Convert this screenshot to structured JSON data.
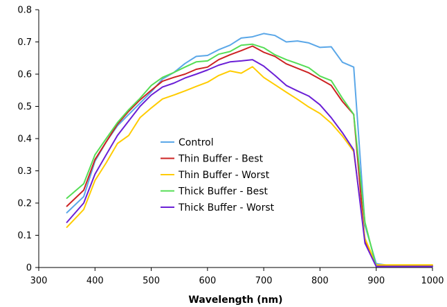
{
  "chart_data": {
    "type": "line",
    "title": "",
    "xlabel": "Wavelength (nm)",
    "ylabel": "",
    "xlim": [
      300,
      1000
    ],
    "ylim": [
      0,
      0.8
    ],
    "x_ticks": [
      300,
      400,
      500,
      600,
      700,
      800,
      900,
      1000
    ],
    "y_ticks": [
      0,
      0.1,
      0.2,
      0.3,
      0.4,
      0.5,
      0.6,
      0.7,
      0.8
    ],
    "x_tick_labels": [
      "300",
      "400",
      "500",
      "600",
      "700",
      "800",
      "900",
      "1000"
    ],
    "y_tick_labels": [
      "0",
      "0.1",
      "0.2",
      "0.3",
      "0.4",
      "0.5",
      "0.6",
      "0.7",
      "0.8"
    ],
    "grid": false,
    "legend_position": "center",
    "x": [
      350,
      380,
      400,
      420,
      440,
      460,
      480,
      500,
      520,
      540,
      560,
      580,
      600,
      620,
      640,
      660,
      680,
      700,
      720,
      740,
      760,
      780,
      800,
      820,
      840,
      860,
      880,
      900,
      920,
      940,
      960,
      980,
      1000
    ],
    "series": [
      {
        "name": "Control",
        "color": "#5aa7e8",
        "values": [
          0.17,
          0.22,
          0.33,
          0.39,
          0.44,
          0.475,
          0.51,
          0.545,
          0.585,
          0.605,
          0.633,
          0.655,
          0.658,
          0.676,
          0.69,
          0.712,
          0.716,
          0.726,
          0.72,
          0.7,
          0.703,
          0.697,
          0.683,
          0.685,
          0.637,
          0.622,
          0.13,
          0.012,
          0.007,
          0.006,
          0.006,
          0.006,
          0.006
        ]
      },
      {
        "name": "Thin Buffer - Best",
        "color": "#cc2222",
        "values": [
          0.19,
          0.24,
          0.335,
          0.39,
          0.445,
          0.485,
          0.52,
          0.55,
          0.578,
          0.59,
          0.6,
          0.615,
          0.622,
          0.645,
          0.66,
          0.673,
          0.687,
          0.668,
          0.655,
          0.632,
          0.618,
          0.604,
          0.585,
          0.565,
          0.515,
          0.475,
          0.08,
          0.005,
          0.004,
          0.004,
          0.004,
          0.004,
          0.004
        ]
      },
      {
        "name": "Thin Buffer - Worst",
        "color": "#ffcc00",
        "values": [
          0.125,
          0.18,
          0.27,
          0.325,
          0.385,
          0.41,
          0.465,
          0.495,
          0.523,
          0.535,
          0.548,
          0.562,
          0.575,
          0.596,
          0.61,
          0.603,
          0.623,
          0.59,
          0.567,
          0.544,
          0.522,
          0.498,
          0.478,
          0.448,
          0.408,
          0.36,
          0.09,
          0.008,
          0.008,
          0.008,
          0.008,
          0.008,
          0.008
        ]
      },
      {
        "name": "Thick Buffer - Best",
        "color": "#55dd55",
        "values": [
          0.215,
          0.26,
          0.35,
          0.4,
          0.45,
          0.49,
          0.525,
          0.565,
          0.59,
          0.605,
          0.622,
          0.638,
          0.641,
          0.662,
          0.67,
          0.69,
          0.693,
          0.682,
          0.66,
          0.645,
          0.633,
          0.62,
          0.594,
          0.58,
          0.525,
          0.475,
          0.14,
          0.003,
          0.003,
          0.003,
          0.003,
          0.003,
          0.003
        ]
      },
      {
        "name": "Thick Buffer - Worst",
        "color": "#6a1fd6",
        "values": [
          0.14,
          0.2,
          0.29,
          0.35,
          0.41,
          0.455,
          0.5,
          0.535,
          0.56,
          0.572,
          0.588,
          0.6,
          0.613,
          0.628,
          0.638,
          0.641,
          0.645,
          0.625,
          0.596,
          0.565,
          0.548,
          0.532,
          0.505,
          0.465,
          0.418,
          0.365,
          0.075,
          0.003,
          0.003,
          0.003,
          0.003,
          0.003,
          0.003
        ]
      }
    ]
  }
}
